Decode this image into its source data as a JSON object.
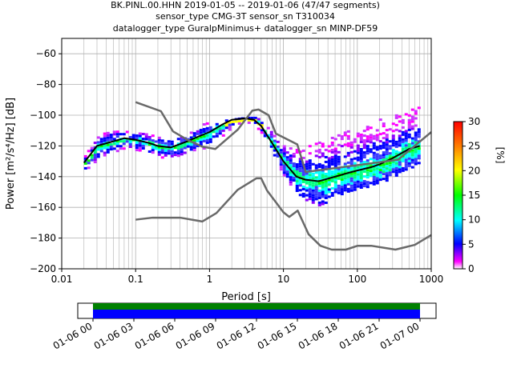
{
  "title_lines": [
    "BK.PINL.00.HHN   2019-01-05 -- 2019-01-06  (47/47 segments)",
    "sensor_type CMG-3T sensor_sn T310034",
    "datalogger_type GuralpMinimus+ datalogger_sn MINP-DF59"
  ],
  "chart_data": [
    {
      "type": "heatmap",
      "title": "BK.PINL.00.HHN   2019-01-05 -- 2019-01-06  (47/47 segments)",
      "subtitle": [
        "sensor_type CMG-3T sensor_sn T310034",
        "datalogger_type GuralpMinimus+ datalogger_sn MINP-DF59"
      ],
      "xlabel": "Period [s]",
      "ylabel": "Power [m²/s⁴/Hz] [dB]",
      "xscale": "log",
      "xlim": [
        0.01,
        1000
      ],
      "ylim": [
        -200,
        -50
      ],
      "xticks": [
        {
          "v": 0.01,
          "l": "0.01"
        },
        {
          "v": 0.1,
          "l": "0.1"
        },
        {
          "v": 1,
          "l": "1"
        },
        {
          "v": 10,
          "l": "10"
        },
        {
          "v": 100,
          "l": "100"
        },
        {
          "v": 1000,
          "l": "1000"
        }
      ],
      "yticks": [
        -200,
        -180,
        -160,
        -140,
        -120,
        -100,
        -80,
        -60
      ],
      "grid": true,
      "colorbar": {
        "label": "[%]",
        "min": 0,
        "max": 30,
        "ticks": [
          0,
          5,
          10,
          15,
          20,
          25,
          30
        ]
      },
      "series": [
        {
          "name": "",
          "role": "median",
          "x": [
            0.02,
            0.03,
            0.05,
            0.07,
            0.1,
            0.15,
            0.2,
            0.3,
            0.5,
            0.7,
            1,
            1.5,
            2,
            3,
            4,
            5,
            7,
            10,
            15,
            20,
            30,
            50,
            70,
            100,
            150,
            200,
            300,
            500,
            700
          ],
          "y": [
            -131,
            -120,
            -117,
            -115,
            -116,
            -118,
            -120,
            -121,
            -117,
            -114,
            -111,
            -106,
            -103,
            -102,
            -103,
            -107,
            -118,
            -130,
            -140,
            -142,
            -143,
            -140,
            -138,
            -136,
            -134,
            -132,
            -128,
            -122,
            -120
          ]
        },
        {
          "name": "",
          "role": "noise-model-high",
          "x": [
            0.1,
            0.22,
            0.32,
            0.5,
            0.8,
            1.2,
            2.4,
            3.8,
            4.6,
            6.3,
            7.9,
            15.4,
            20,
            354.8,
            1000
          ],
          "y": [
            -91.5,
            -97.4,
            -110.5,
            -116,
            -120.5,
            -122,
            -109.5,
            -97,
            -96.3,
            -100,
            -112,
            -119,
            -137,
            -129,
            -111
          ]
        },
        {
          "name": "",
          "role": "noise-model-low",
          "x": [
            0.1,
            0.17,
            0.4,
            0.8,
            1.24,
            2.4,
            4.3,
            5.0,
            6.0,
            10,
            12,
            15.6,
            21.9,
            31.6,
            45,
            70,
            101,
            154,
            328,
            600,
            1000
          ],
          "y": [
            -168,
            -166.7,
            -166.7,
            -169.2,
            -163.7,
            -148.6,
            -141.1,
            -141.1,
            -149,
            -163.2,
            -166.2,
            -162.1,
            -177.5,
            -185,
            -187.5,
            -187.5,
            -185,
            -185,
            -187.5,
            -184.4,
            -178.0
          ]
        }
      ],
      "density_envelope": {
        "x": [
          0.02,
          0.03,
          0.05,
          0.07,
          0.1,
          0.15,
          0.2,
          0.3,
          0.5,
          0.7,
          1,
          1.5,
          2,
          3,
          4,
          5,
          7,
          10,
          15,
          20,
          30,
          50,
          70,
          100,
          150,
          200,
          300,
          500,
          700
        ],
        "upper": [
          -126,
          -112,
          -110,
          -110,
          -111,
          -112,
          -114,
          -115,
          -110,
          -106,
          -104,
          -103,
          -102,
          -101,
          -101,
          -103,
          -112,
          -120,
          -122,
          -120,
          -117,
          -113,
          -110,
          -108,
          -104,
          -102,
          -100,
          -96,
          -94
        ],
        "lower": [
          -136,
          -128,
          -123,
          -121,
          -122,
          -124,
          -127,
          -128,
          -124,
          -122,
          -120,
          -112,
          -107,
          -104,
          -106,
          -112,
          -126,
          -141,
          -150,
          -155,
          -158,
          -153,
          -150,
          -148,
          -146,
          -144,
          -140,
          -134,
          -130
        ]
      }
    },
    {
      "type": "timeline",
      "xticks": [
        "01-06 00",
        "01-06 03",
        "01-06 06",
        "01-06 09",
        "01-06 12",
        "01-06 15",
        "01-06 18",
        "01-06 21",
        "01-07 00"
      ],
      "bands": [
        {
          "color": "#008000"
        },
        {
          "color": "#0000ff"
        }
      ]
    }
  ],
  "colors": {
    "median": "#000000",
    "noise_model": "#696969",
    "grid": "#b0b0b0"
  }
}
